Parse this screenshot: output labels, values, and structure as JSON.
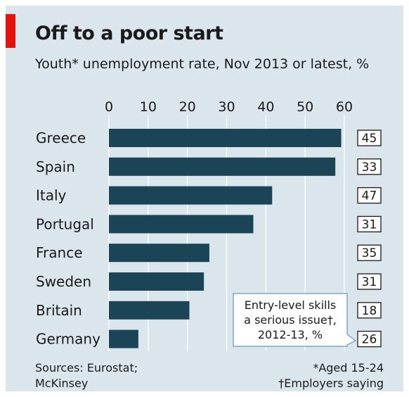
{
  "header": {
    "title": "Off to a poor start",
    "subtitle": "Youth* unemployment rate, Nov 2013 or latest, %"
  },
  "footer": {
    "source_line1": "Sources: Eurostat;",
    "source_line2": "McKinsey",
    "note1": "*Aged 15-24",
    "note2": "†Employers saying"
  },
  "callout": {
    "line1": "Entry-level skills",
    "line2": "a serious issue†,",
    "line3": "2012-13, %"
  },
  "colors": {
    "bar": "#1b4457",
    "brand_red": "#e3120b",
    "background": "#dbe5ec"
  },
  "chart_data": {
    "type": "bar",
    "orientation": "horizontal",
    "title": "Off to a poor start",
    "subtitle": "Youth* unemployment rate, Nov 2013 or latest, %",
    "categories": [
      "Greece",
      "Spain",
      "Italy",
      "Portugal",
      "France",
      "Sweden",
      "Britain",
      "Germany"
    ],
    "series": [
      {
        "values": [
          59.2,
          57.7,
          41.6,
          36.8,
          25.6,
          24.2,
          20.5,
          7.5
        ]
      },
      {
        "name": "Entry-level skills a serious issue†, 2012-13, %",
        "values": [
          45,
          33,
          47,
          31,
          35,
          31,
          18,
          26
        ]
      }
    ],
    "xlim": [
      0,
      60
    ],
    "xticks": [
      0,
      10,
      20,
      30,
      40,
      50,
      60
    ],
    "grid": true
  }
}
